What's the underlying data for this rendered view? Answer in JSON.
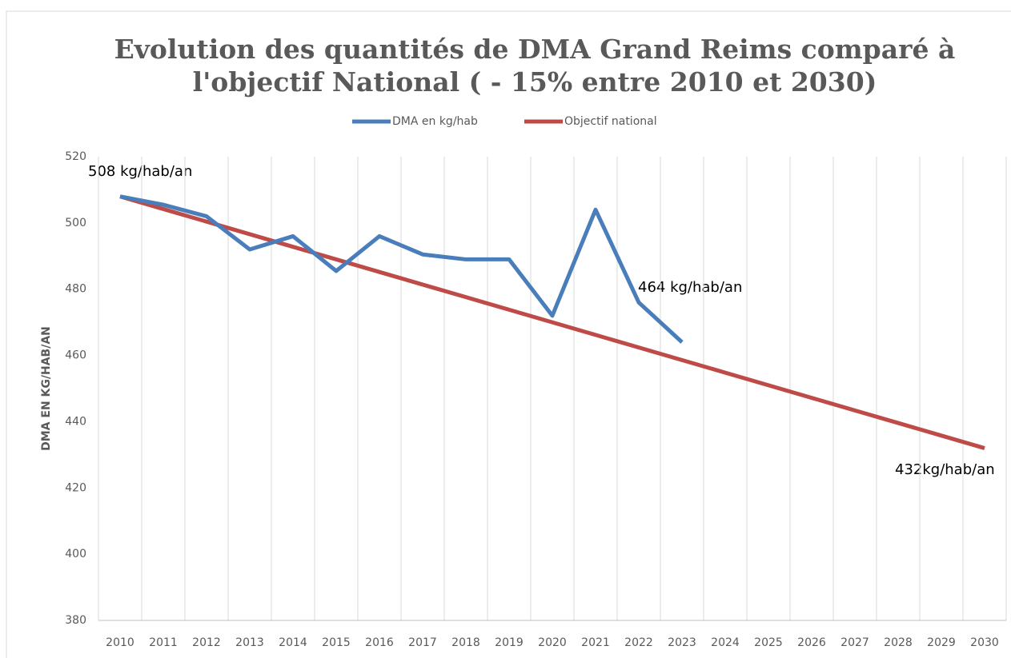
{
  "chart_data": {
    "type": "line",
    "title": [
      "Evolution des quantités de DMA Grand Reims comparé à",
      "l'objectif National ( - 15% entre 2010 et 2030)"
    ],
    "y_label": "DMA EN KG/HAB/AN",
    "categories": [
      "2010",
      "2011",
      "2012",
      "2013",
      "2014",
      "2015",
      "2016",
      "2017",
      "2018",
      "2019",
      "2020",
      "2021",
      "2022",
      "2023",
      "2024",
      "2025",
      "2026",
      "2027",
      "2028",
      "2029",
      "2030"
    ],
    "series": [
      {
        "name": "DMA en kg/hab",
        "color": "#4a7ebb",
        "values": [
          508,
          505.5,
          502,
          492,
          496,
          485.5,
          496,
          490.5,
          489,
          489,
          472,
          504,
          476,
          464,
          null,
          null,
          null,
          null,
          null,
          null,
          null
        ]
      },
      {
        "name": "Objectif national",
        "color": "#be4b48",
        "values": [
          508,
          504.2,
          500.4,
          496.6,
          492.8,
          489,
          485.2,
          481.4,
          477.6,
          473.8,
          470,
          466.2,
          462.4,
          458.6,
          454.8,
          451,
          447.2,
          443.4,
          439.6,
          435.8,
          432
        ]
      }
    ],
    "annotations": [
      "508 kg/hab/an",
      "464 kg/hab/an",
      "432kg/hab/an"
    ],
    "ylim": [
      380,
      520
    ],
    "yticks": [
      380,
      400,
      420,
      440,
      460,
      480,
      500,
      520
    ],
    "grid": true,
    "legend": "top"
  }
}
